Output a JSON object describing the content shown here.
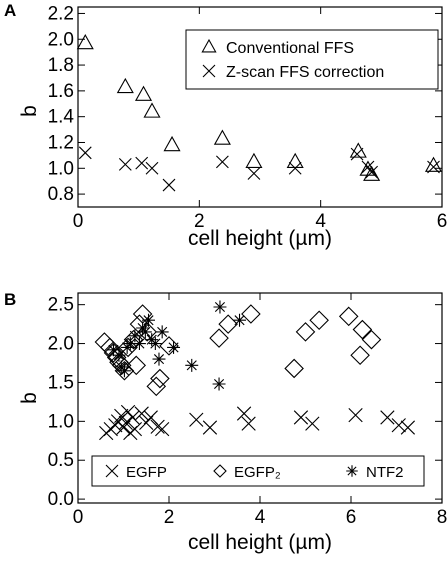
{
  "chart_data": [
    {
      "type": "scatter",
      "panel_label": "A",
      "xlabel": "cell height (µm)",
      "ylabel": "b",
      "xlim": [
        0,
        6
      ],
      "ylim": [
        0.7,
        2.25
      ],
      "x_ticks": [
        0,
        2,
        4,
        6
      ],
      "x_tick_labels": [
        "0",
        "2",
        "4",
        "6"
      ],
      "y_ticks": [
        0.8,
        1.0,
        1.2,
        1.4,
        1.6,
        1.8,
        2.0,
        2.2
      ],
      "y_tick_labels": [
        "0.8",
        "1.0",
        "1.2",
        "1.4",
        "1.6",
        "1.8",
        "2.0",
        "2.2"
      ],
      "grid": false,
      "legend_position": "top-right",
      "series": [
        {
          "name": "Conventional FFS",
          "marker": "triangle",
          "points": [
            [
              0.12,
              1.97
            ],
            [
              0.78,
              1.63
            ],
            [
              1.08,
              1.57
            ],
            [
              1.22,
              1.44
            ],
            [
              1.55,
              1.18
            ],
            [
              2.38,
              1.23
            ],
            [
              2.9,
              1.05
            ],
            [
              3.58,
              1.05
            ],
            [
              4.62,
              1.13
            ],
            [
              4.78,
              0.99
            ],
            [
              4.84,
              0.95
            ],
            [
              5.86,
              1.02
            ]
          ]
        },
        {
          "name": "Z-scan FFS correction",
          "marker": "cross",
          "points": [
            [
              0.12,
              1.12
            ],
            [
              0.78,
              1.03
            ],
            [
              1.05,
              1.04
            ],
            [
              1.22,
              1.0
            ],
            [
              1.5,
              0.87
            ],
            [
              2.38,
              1.05
            ],
            [
              2.9,
              0.96
            ],
            [
              3.58,
              1.0
            ],
            [
              4.6,
              1.11
            ],
            [
              4.78,
              1.01
            ],
            [
              4.84,
              0.97
            ],
            [
              5.86,
              1.01
            ]
          ]
        }
      ]
    },
    {
      "type": "scatter",
      "panel_label": "B",
      "xlabel": "cell height (µm)",
      "ylabel": "b",
      "xlim": [
        0,
        8
      ],
      "ylim": [
        -0.05,
        2.65
      ],
      "x_ticks": [
        0,
        2,
        4,
        6,
        8
      ],
      "x_tick_labels": [
        "0",
        "2",
        "4",
        "6",
        "8"
      ],
      "y_ticks": [
        0.0,
        0.5,
        1.0,
        1.5,
        2.0,
        2.5
      ],
      "y_tick_labels": [
        "0.0",
        "0.5",
        "1.0",
        "1.5",
        "2.0",
        "2.5"
      ],
      "grid": false,
      "legend_position": "bottom",
      "series": [
        {
          "name": "EGFP",
          "marker": "cross",
          "points": [
            [
              0.62,
              0.85
            ],
            [
              0.72,
              0.9
            ],
            [
              0.82,
              0.95
            ],
            [
              0.88,
              1.0
            ],
            [
              0.95,
              1.07
            ],
            [
              1.0,
              0.92
            ],
            [
              1.05,
              0.98
            ],
            [
              1.1,
              1.12
            ],
            [
              1.15,
              0.85
            ],
            [
              1.2,
              1.05
            ],
            [
              1.25,
              0.9
            ],
            [
              1.4,
              1.1
            ],
            [
              1.5,
              0.98
            ],
            [
              1.6,
              1.05
            ],
            [
              1.75,
              0.93
            ],
            [
              1.85,
              0.9
            ],
            [
              2.6,
              1.02
            ],
            [
              2.9,
              0.92
            ],
            [
              3.65,
              1.1
            ],
            [
              3.75,
              0.97
            ],
            [
              4.9,
              1.05
            ],
            [
              5.15,
              0.97
            ],
            [
              6.1,
              1.08
            ],
            [
              6.8,
              1.05
            ],
            [
              7.05,
              0.95
            ],
            [
              7.25,
              0.92
            ]
          ]
        },
        {
          "name": "EGFP₂",
          "marker": "diamond",
          "points": [
            [
              0.58,
              2.02
            ],
            [
              0.7,
              1.95
            ],
            [
              0.78,
              1.88
            ],
            [
              0.85,
              1.82
            ],
            [
              0.9,
              1.76
            ],
            [
              0.96,
              1.72
            ],
            [
              1.02,
              1.65
            ],
            [
              1.1,
              1.95
            ],
            [
              1.22,
              2.05
            ],
            [
              1.28,
              1.72
            ],
            [
              1.35,
              2.25
            ],
            [
              1.42,
              2.38
            ],
            [
              1.52,
              2.15
            ],
            [
              1.72,
              1.45
            ],
            [
              1.8,
              1.55
            ],
            [
              2.0,
              1.97
            ],
            [
              3.1,
              2.07
            ],
            [
              3.3,
              2.25
            ],
            [
              3.8,
              2.38
            ],
            [
              4.75,
              1.68
            ],
            [
              5.0,
              2.15
            ],
            [
              5.3,
              2.3
            ],
            [
              5.95,
              2.35
            ],
            [
              6.2,
              1.85
            ],
            [
              6.25,
              2.18
            ],
            [
              6.45,
              2.05
            ]
          ]
        },
        {
          "name": "NTF2",
          "marker": "asterisk",
          "points": [
            [
              0.78,
              1.92
            ],
            [
              0.9,
              1.85
            ],
            [
              0.95,
              1.7
            ],
            [
              1.02,
              1.65
            ],
            [
              1.08,
              1.95
            ],
            [
              1.15,
              2.0
            ],
            [
              1.25,
              2.1
            ],
            [
              1.35,
              2.0
            ],
            [
              1.42,
              2.2
            ],
            [
              1.48,
              2.15
            ],
            [
              1.55,
              2.3
            ],
            [
              1.62,
              2.05
            ],
            [
              1.7,
              2.0
            ],
            [
              1.78,
              1.8
            ],
            [
              1.85,
              2.15
            ],
            [
              2.1,
              1.95
            ],
            [
              2.5,
              1.72
            ],
            [
              3.1,
              1.48
            ],
            [
              3.12,
              2.47
            ],
            [
              3.55,
              2.3
            ]
          ]
        }
      ]
    }
  ]
}
